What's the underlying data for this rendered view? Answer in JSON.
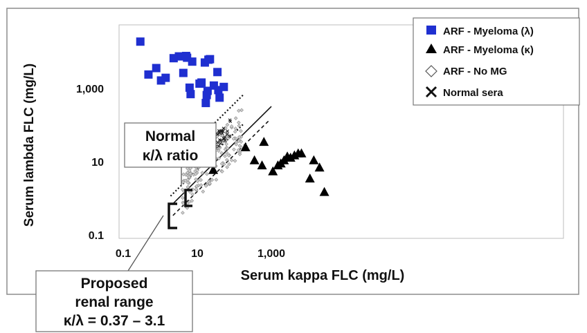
{
  "chart_data": {
    "type": "scatter",
    "x_scale": "log",
    "y_scale": "log",
    "xlabel": "Serum kappa FLC (mg/L)",
    "ylabel": "Serum lambda FLC (mg/L)",
    "xlim": [
      0.1,
      30000
    ],
    "ylim": [
      0.1,
      30000
    ],
    "x_ticks": [
      {
        "value": 0.1,
        "label": "0.1"
      },
      {
        "value": 10,
        "label": "10"
      },
      {
        "value": 1000,
        "label": "1,000"
      }
    ],
    "y_ticks": [
      {
        "value": 0.1,
        "label": "0.1"
      },
      {
        "value": 10,
        "label": "10"
      },
      {
        "value": 1000,
        "label": "1,000"
      }
    ],
    "legend_position": "top-right",
    "series": [
      {
        "name": "ARF - Myeloma (λ)",
        "marker": "square",
        "color": "#1f2fd0",
        "points": [
          [
            0.29,
            19000
          ],
          [
            0.48,
            2400
          ],
          [
            0.78,
            3600
          ],
          [
            1.05,
            1650
          ],
          [
            1.4,
            1950
          ],
          [
            3.2,
            7500
          ],
          [
            5.0,
            7700
          ],
          [
            4.2,
            2650
          ],
          [
            2.3,
            6700
          ],
          [
            7.3,
            5400
          ],
          [
            11.5,
            1350
          ],
          [
            16,
            5100
          ],
          [
            20,
            6100
          ],
          [
            22,
            6300
          ],
          [
            35,
            2800
          ],
          [
            13,
            1450
          ],
          [
            19,
            860
          ],
          [
            17,
            400
          ],
          [
            18,
            660
          ],
          [
            28,
            1200
          ],
          [
            37,
            900
          ],
          [
            52,
            1100
          ],
          [
            5.3,
            6900
          ],
          [
            6.2,
            1050
          ],
          [
            6.6,
            700
          ],
          [
            5.0,
            13
          ],
          [
            40,
            560
          ]
        ]
      },
      {
        "name": "ARF - Myeloma (κ)",
        "marker": "triangle",
        "color": "#000000",
        "points": [
          [
            200,
            25
          ],
          [
            350,
            11
          ],
          [
            560,
            8
          ],
          [
            630,
            35
          ],
          [
            1100,
            5.5
          ],
          [
            1500,
            8
          ],
          [
            1800,
            9
          ],
          [
            2200,
            11
          ],
          [
            2700,
            14
          ],
          [
            3300,
            13
          ],
          [
            4200,
            15
          ],
          [
            5300,
            17
          ],
          [
            6500,
            17
          ],
          [
            11000,
            3.5
          ],
          [
            14000,
            11
          ],
          [
            20000,
            7
          ],
          [
            27000,
            1.5
          ],
          [
            27,
            6
          ]
        ]
      }
    ],
    "point_clouds": [
      {
        "label": "ARF - No MG",
        "marker": "diamond",
        "color": "#9a9a9a",
        "region": "spread around the ratio band"
      },
      {
        "label": "Normal sera",
        "marker": "x",
        "color": "#111111",
        "region": "inside the normal ratio band"
      }
    ],
    "reference_bands": [
      {
        "label": "Normal κ/λ ratio",
        "style": "dotted"
      },
      {
        "label": "Proposed renal range",
        "ratio_text": "κ/λ = 0.37 – 3.1",
        "style": "solid + dashed"
      }
    ]
  },
  "annotations": {
    "normal_line1": "Normal",
    "normal_line2": "κ/λ ratio",
    "renal_line1": "Proposed",
    "renal_line2": "renal range",
    "renal_line3": "κ/λ = 0.37 – 3.1"
  }
}
